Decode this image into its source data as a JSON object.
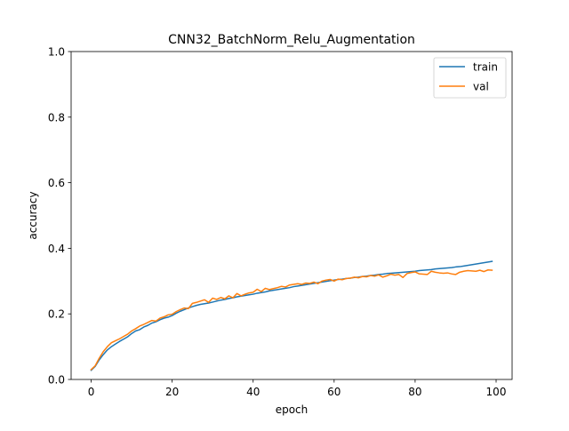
{
  "chart_data": {
    "type": "line",
    "title": "CNN32_BatchNorm_Relu_Augmentation",
    "xlabel": "epoch",
    "ylabel": "accuracy",
    "xlim": [
      -4.95,
      103.95
    ],
    "ylim": [
      0.0,
      1.0
    ],
    "xticks": [
      0,
      20,
      40,
      60,
      80,
      100
    ],
    "xtick_labels": [
      "0",
      "20",
      "40",
      "60",
      "80",
      "100"
    ],
    "yticks": [
      0.0,
      0.2,
      0.4,
      0.6,
      0.8,
      1.0
    ],
    "ytick_labels": [
      "0.0",
      "0.2",
      "0.4",
      "0.6",
      "0.8",
      "1.0"
    ],
    "grid": false,
    "legend": "top-right",
    "x": [
      0,
      1,
      2,
      3,
      4,
      5,
      6,
      7,
      8,
      9,
      10,
      11,
      12,
      13,
      14,
      15,
      16,
      17,
      18,
      19,
      20,
      21,
      22,
      23,
      24,
      25,
      26,
      27,
      28,
      29,
      30,
      31,
      32,
      33,
      34,
      35,
      36,
      37,
      38,
      39,
      40,
      41,
      42,
      43,
      44,
      45,
      46,
      47,
      48,
      49,
      50,
      51,
      52,
      53,
      54,
      55,
      56,
      57,
      58,
      59,
      60,
      61,
      62,
      63,
      64,
      65,
      66,
      67,
      68,
      69,
      70,
      71,
      72,
      73,
      74,
      75,
      76,
      77,
      78,
      79,
      80,
      81,
      82,
      83,
      84,
      85,
      86,
      87,
      88,
      89,
      90,
      91,
      92,
      93,
      94,
      95,
      96,
      97,
      98,
      99
    ],
    "series": [
      {
        "name": "train",
        "color": "#1f77b4",
        "values": [
          0.028,
          0.04,
          0.06,
          0.076,
          0.09,
          0.1,
          0.108,
          0.116,
          0.123,
          0.13,
          0.14,
          0.148,
          0.152,
          0.16,
          0.165,
          0.172,
          0.176,
          0.182,
          0.187,
          0.19,
          0.195,
          0.202,
          0.208,
          0.213,
          0.218,
          0.222,
          0.226,
          0.229,
          0.231,
          0.233,
          0.236,
          0.239,
          0.242,
          0.244,
          0.247,
          0.249,
          0.252,
          0.254,
          0.256,
          0.258,
          0.26,
          0.263,
          0.265,
          0.267,
          0.27,
          0.272,
          0.274,
          0.276,
          0.278,
          0.28,
          0.283,
          0.285,
          0.287,
          0.289,
          0.291,
          0.293,
          0.295,
          0.297,
          0.299,
          0.301,
          0.303,
          0.305,
          0.306,
          0.308,
          0.309,
          0.311,
          0.312,
          0.314,
          0.315,
          0.317,
          0.318,
          0.32,
          0.321,
          0.323,
          0.324,
          0.325,
          0.326,
          0.327,
          0.328,
          0.329,
          0.33,
          0.332,
          0.333,
          0.334,
          0.335,
          0.337,
          0.338,
          0.339,
          0.34,
          0.341,
          0.343,
          0.344,
          0.346,
          0.348,
          0.35,
          0.352,
          0.354,
          0.356,
          0.358,
          0.36
        ]
      },
      {
        "name": "val",
        "color": "#ff7f0e",
        "values": [
          0.03,
          0.042,
          0.065,
          0.085,
          0.1,
          0.112,
          0.118,
          0.124,
          0.131,
          0.138,
          0.148,
          0.155,
          0.163,
          0.168,
          0.174,
          0.18,
          0.178,
          0.187,
          0.191,
          0.197,
          0.199,
          0.207,
          0.213,
          0.218,
          0.216,
          0.232,
          0.235,
          0.239,
          0.243,
          0.235,
          0.248,
          0.244,
          0.25,
          0.246,
          0.255,
          0.249,
          0.262,
          0.255,
          0.26,
          0.264,
          0.266,
          0.275,
          0.268,
          0.278,
          0.274,
          0.277,
          0.28,
          0.284,
          0.282,
          0.288,
          0.29,
          0.292,
          0.29,
          0.294,
          0.293,
          0.297,
          0.292,
          0.3,
          0.303,
          0.305,
          0.3,
          0.306,
          0.304,
          0.308,
          0.309,
          0.312,
          0.31,
          0.314,
          0.313,
          0.317,
          0.315,
          0.319,
          0.312,
          0.316,
          0.321,
          0.318,
          0.32,
          0.311,
          0.323,
          0.326,
          0.328,
          0.322,
          0.321,
          0.32,
          0.33,
          0.327,
          0.325,
          0.324,
          0.325,
          0.322,
          0.32,
          0.327,
          0.33,
          0.332,
          0.331,
          0.33,
          0.333,
          0.329,
          0.334,
          0.333
        ]
      }
    ]
  }
}
